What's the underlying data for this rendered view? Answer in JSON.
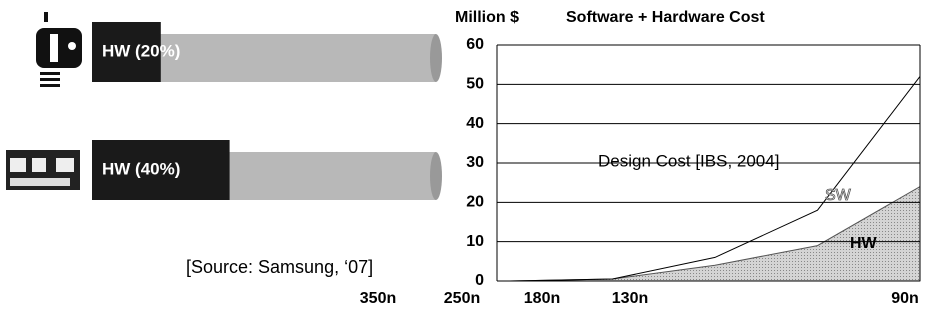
{
  "chart_data": [
    {
      "type": "hbar",
      "values": [
        20,
        40
      ],
      "value_labels": [
        "HW (20%)",
        "HW (40%)"
      ],
      "xlim": [
        0,
        100
      ],
      "color": "#1a1a1a",
      "rest_color": "#b8b8b8",
      "source": "[Source: Samsung, ‘07]"
    },
    {
      "type": "stacked-area",
      "title": "Software + Hardware Cost",
      "y_label": "Million $",
      "annotation": "Design Cost [IBS, 2004]",
      "categories": [
        "350n",
        "250n",
        "180n",
        "130n",
        "90n"
      ],
      "series": [
        {
          "name": "HW",
          "color": "#c8c8c8",
          "values": [
            0,
            0.5,
            4,
            9,
            24
          ]
        },
        {
          "name": "SW",
          "color": "#000000",
          "values": [
            0,
            0,
            2,
            9,
            28
          ]
        }
      ],
      "ylim": [
        0,
        60
      ],
      "yticks": [
        0,
        10,
        20,
        30,
        40,
        50,
        60
      ],
      "grid": true
    }
  ]
}
